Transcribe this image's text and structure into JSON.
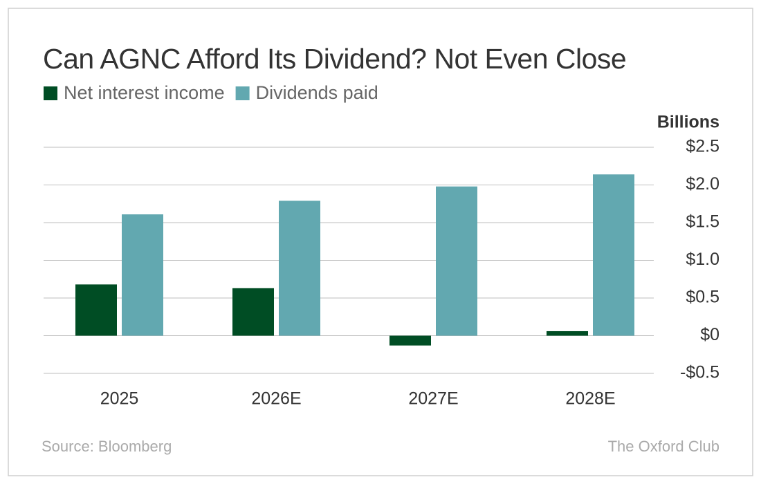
{
  "chart_data": {
    "type": "bar",
    "title": "Can AGNC Afford Its Dividend? Not Even Close",
    "y_axis_label": "Billions",
    "source": "Source: Bloomberg",
    "credit": "The Oxford Club",
    "categories": [
      "2025",
      "2026E",
      "2027E",
      "2028E"
    ],
    "series": [
      {
        "name": "Net interest income",
        "color": "#004d24",
        "values": [
          0.68,
          0.63,
          -0.13,
          0.06
        ]
      },
      {
        "name": "Dividends paid",
        "color": "#62a8b0",
        "values": [
          1.61,
          1.79,
          1.98,
          2.14
        ]
      }
    ],
    "ylim": [
      -0.5,
      2.5
    ],
    "yticks": [
      {
        "value": -0.5,
        "label": "-$0.5"
      },
      {
        "value": 0,
        "label": "$0"
      },
      {
        "value": 0.5,
        "label": "$0.5"
      },
      {
        "value": 1.0,
        "label": "$1.0"
      },
      {
        "value": 1.5,
        "label": "$1.5"
      },
      {
        "value": 2.0,
        "label": "$2.0"
      },
      {
        "value": 2.5,
        "label": "$2.5"
      }
    ],
    "grid": true
  }
}
